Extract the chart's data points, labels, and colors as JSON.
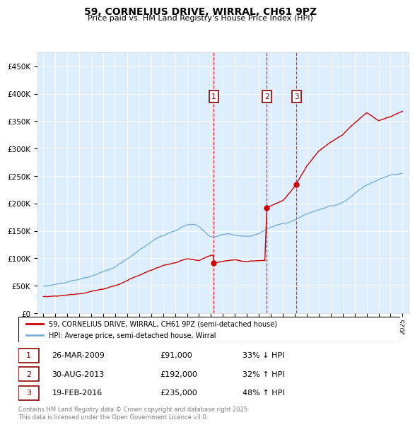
{
  "title": "59, CORNELIUS DRIVE, WIRRAL, CH61 9PZ",
  "subtitle": "Price paid vs. HM Land Registry's House Price Index (HPI)",
  "legend_property": "59, CORNELIUS DRIVE, WIRRAL, CH61 9PZ (semi-detached house)",
  "legend_hpi": "HPI: Average price, semi-detached house, Wirral",
  "footnote": "Contains HM Land Registry data © Crown copyright and database right 2025.\nThis data is licensed under the Open Government Licence v3.0.",
  "property_color": "#cc0000",
  "hpi_color": "#7aafd4",
  "background_color": "#ddeeff",
  "purchases": [
    {
      "label": "1",
      "date": "26-MAR-2009",
      "price": 91000,
      "pct": "33%",
      "dir": "↓",
      "year": 2009.23
    },
    {
      "label": "2",
      "date": "30-AUG-2013",
      "price": 192000,
      "pct": "32%",
      "dir": "↑",
      "year": 2013.66
    },
    {
      "label": "3",
      "date": "19-FEB-2016",
      "price": 235000,
      "pct": "48%",
      "dir": "↑",
      "year": 2016.13
    }
  ],
  "ylim": [
    0,
    475000
  ],
  "yticks": [
    0,
    50000,
    100000,
    150000,
    200000,
    250000,
    300000,
    350000,
    400000,
    450000
  ],
  "xlim": [
    1994.5,
    2025.5
  ],
  "marker_y": 395000,
  "box_label_color": "#cc0000"
}
